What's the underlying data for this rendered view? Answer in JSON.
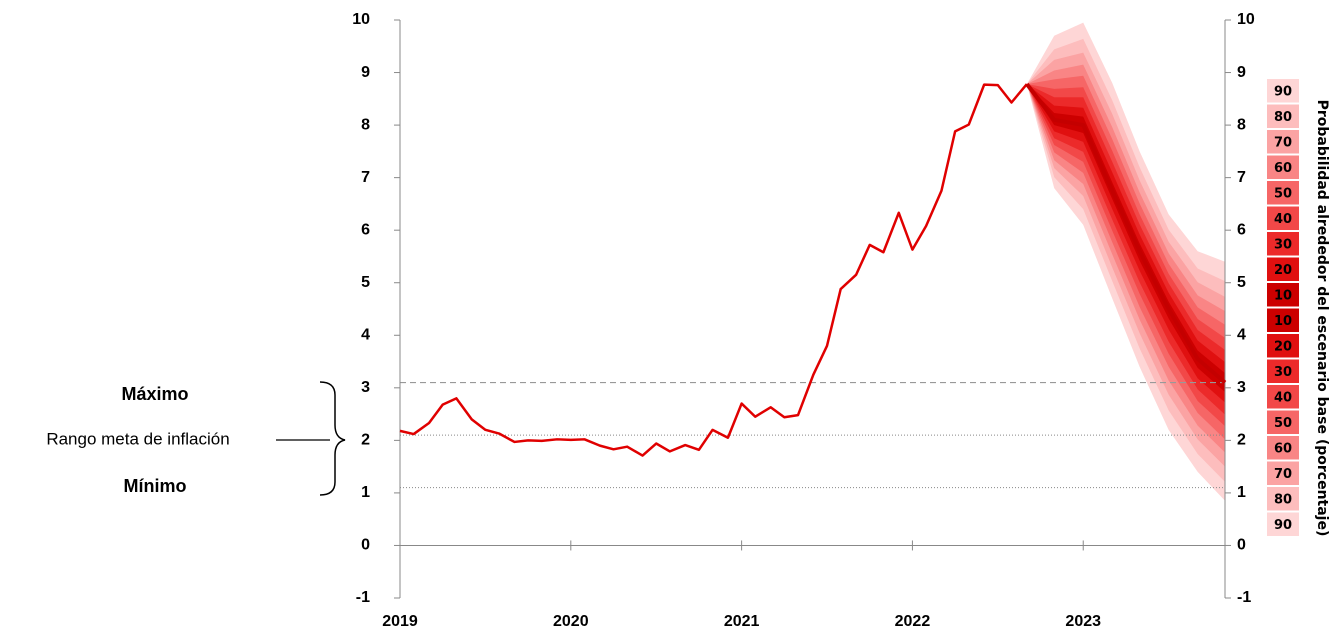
{
  "chart_data": {
    "type": "line",
    "color": "#e00000",
    "x": [
      2019.0,
      2019.08,
      2019.17,
      2019.25,
      2019.33,
      2019.42,
      2019.5,
      2019.58,
      2019.67,
      2019.75,
      2019.83,
      2019.92,
      2020.0,
      2020.08,
      2020.17,
      2020.25,
      2020.33,
      2020.42,
      2020.5,
      2020.58,
      2020.67,
      2020.75,
      2020.83,
      2020.92,
      2021.0,
      2021.08,
      2021.17,
      2021.25,
      2021.33,
      2021.42,
      2021.5,
      2021.58,
      2021.67,
      2021.75,
      2021.83,
      2021.92,
      2022.0,
      2022.08,
      2022.17,
      2022.25,
      2022.33,
      2022.42,
      2022.5,
      2022.58,
      2022.67
    ],
    "values": [
      2.18,
      2.12,
      2.33,
      2.68,
      2.8,
      2.4,
      2.2,
      2.13,
      1.97,
      2.0,
      1.99,
      2.02,
      2.01,
      2.02,
      1.9,
      1.83,
      1.88,
      1.71,
      1.94,
      1.79,
      1.91,
      1.82,
      2.2,
      2.05,
      2.7,
      2.45,
      2.63,
      2.44,
      2.48,
      3.25,
      3.8,
      4.88,
      5.15,
      5.72,
      5.58,
      6.33,
      5.63,
      6.08,
      6.75,
      7.88,
      8.01,
      8.77,
      8.76,
      8.43,
      8.78
    ],
    "xlim": [
      2019,
      2023.83
    ],
    "xticks": [
      2019,
      2020,
      2021,
      2022,
      2023
    ],
    "ylim": [
      -1,
      10
    ],
    "yticks": [
      -1,
      0,
      1,
      2,
      3,
      4,
      5,
      6,
      7,
      8,
      9,
      10
    ],
    "y2lim": [
      -1,
      10
    ],
    "y2ticks": [
      -1,
      0,
      1,
      2,
      3,
      4,
      5,
      6,
      7,
      8,
      9,
      10
    ],
    "fan": {
      "x": [
        2022.67,
        2022.83,
        2023.0,
        2023.17,
        2023.33,
        2023.5,
        2023.67,
        2023.83
      ],
      "central": [
        8.78,
        8.1,
        8.0,
        6.75,
        5.6,
        4.5,
        3.55,
        3.1
      ],
      "color": "#c40000",
      "bands": [
        {
          "name": "10",
          "color": "#cc0000",
          "upper": [
            8.78,
            8.23,
            8.16,
            6.91,
            5.75,
            4.64,
            3.71,
            3.28
          ],
          "lower": [
            8.78,
            8.0,
            7.85,
            6.59,
            5.42,
            4.32,
            3.38,
            2.92
          ]
        },
        {
          "name": "20",
          "color": "#e01010",
          "upper": [
            8.78,
            8.37,
            8.33,
            7.1,
            5.92,
            4.81,
            3.9,
            3.49
          ],
          "lower": [
            8.78,
            7.88,
            7.68,
            6.4,
            5.23,
            4.11,
            3.18,
            2.72
          ]
        },
        {
          "name": "30",
          "color": "#ec2a2a",
          "upper": [
            8.78,
            8.53,
            8.53,
            7.3,
            6.11,
            4.99,
            4.1,
            3.72
          ],
          "lower": [
            8.78,
            7.75,
            7.49,
            6.2,
            5.01,
            3.88,
            2.97,
            2.49
          ]
        },
        {
          "name": "40",
          "color": "#f24848",
          "upper": [
            8.78,
            8.69,
            8.72,
            7.51,
            6.3,
            5.17,
            4.31,
            3.95
          ],
          "lower": [
            8.78,
            7.62,
            7.3,
            5.99,
            4.79,
            3.65,
            2.75,
            2.27
          ]
        },
        {
          "name": "50",
          "color": "#f66666",
          "upper": [
            8.78,
            8.87,
            8.94,
            7.73,
            6.51,
            5.36,
            4.53,
            4.2
          ],
          "lower": [
            8.78,
            7.48,
            7.09,
            5.77,
            4.54,
            3.4,
            2.52,
            2.02
          ]
        },
        {
          "name": "60",
          "color": "#f98585",
          "upper": [
            8.78,
            9.04,
            9.15,
            7.96,
            6.72,
            5.56,
            4.76,
            4.46
          ],
          "lower": [
            8.78,
            7.33,
            6.88,
            5.54,
            4.3,
            3.14,
            2.28,
            1.77
          ]
        },
        {
          "name": "70",
          "color": "#fba3a3",
          "upper": [
            8.78,
            9.24,
            9.38,
            8.21,
            6.95,
            5.78,
            5.01,
            4.73
          ],
          "lower": [
            8.78,
            7.18,
            6.65,
            5.29,
            4.04,
            2.87,
            2.02,
            1.5
          ]
        },
        {
          "name": "80",
          "color": "#fdbdbd",
          "upper": [
            8.78,
            9.44,
            9.64,
            8.47,
            7.2,
            6.01,
            5.27,
            5.03
          ],
          "lower": [
            8.78,
            7.01,
            6.4,
            5.03,
            3.75,
            2.57,
            1.74,
            1.21
          ]
        },
        {
          "name": "90",
          "color": "#fed6d6",
          "upper": [
            8.78,
            9.7,
            9.95,
            8.8,
            7.5,
            6.3,
            5.6,
            5.4
          ],
          "lower": [
            8.78,
            6.8,
            6.1,
            4.7,
            3.4,
            2.2,
            1.4,
            0.85
          ]
        }
      ]
    },
    "reference_lines": [
      {
        "value": 3.1,
        "style": "dashed"
      },
      {
        "value": 2.1,
        "style": "dotted"
      },
      {
        "value": 1.1,
        "style": "dotted"
      }
    ],
    "annotations": {
      "max": "Máximo",
      "range": "Rango meta de inflación",
      "min": "Mínimo"
    },
    "legend_title": "Probabilidad alrededor del escenario base (porcentaje)"
  }
}
